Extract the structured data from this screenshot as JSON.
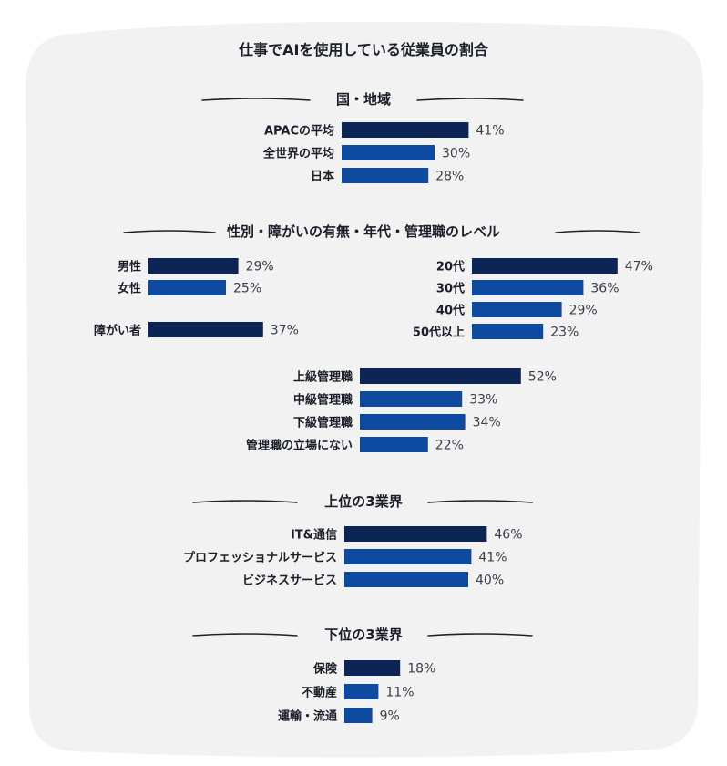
{
  "title": "仕事でAIを使用している従業員の割合",
  "colors": {
    "dark": "#0d2554",
    "blue": "#0f4aa1",
    "panel": "#f2f2f2",
    "rule": "#222222"
  },
  "chart_data": [
    {
      "type": "bar",
      "title": "国・地域",
      "categories": [
        "APACの平均",
        "全世界の平均",
        "日本"
      ],
      "values": [
        41,
        30,
        28
      ],
      "unit": "%"
    },
    {
      "type": "bar",
      "title": "性別・障がいの有無・年代・管理職のレベル",
      "groups": [
        {
          "id": "gender",
          "categories": [
            "男性",
            "女性"
          ],
          "values": [
            29,
            25
          ]
        },
        {
          "id": "disability",
          "categories": [
            "障がい者"
          ],
          "values": [
            37
          ]
        },
        {
          "id": "age",
          "categories": [
            "20代",
            "30代",
            "40代",
            "50代以上"
          ],
          "values": [
            47,
            36,
            29,
            23
          ]
        },
        {
          "id": "management",
          "categories": [
            "上級管理職",
            "中級管理職",
            "下級管理職",
            "管理職の立場にない"
          ],
          "values": [
            52,
            33,
            34,
            22
          ]
        }
      ],
      "unit": "%"
    },
    {
      "type": "bar",
      "title": "上位の3業界",
      "categories": [
        "IT&通信",
        "プロフェッショナルサービス",
        "ビジネスサービス"
      ],
      "values": [
        46,
        41,
        40
      ],
      "unit": "%"
    },
    {
      "type": "bar",
      "title": "下位の3業界",
      "categories": [
        "保険",
        "不動産",
        "運輸・流通"
      ],
      "values": [
        18,
        11,
        9
      ],
      "unit": "%"
    }
  ]
}
